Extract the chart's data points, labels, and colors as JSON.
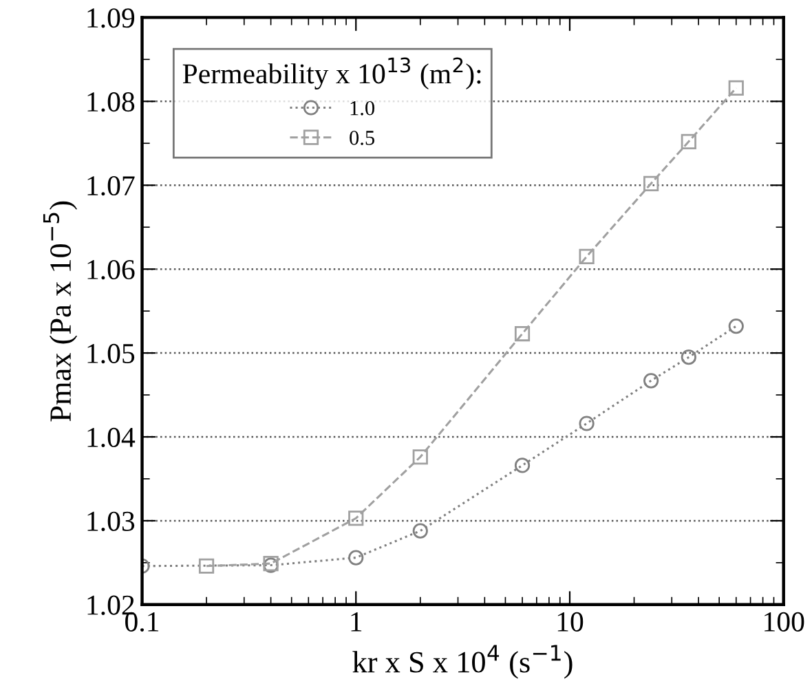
{
  "chart_data": {
    "type": "line",
    "xlabel": "kr x S x 10$^{4}$ (s$^{−1}$)",
    "ylabel": "Pmax (Pa x 10$^{−5}$)",
    "legend_title": "Permeability x 10$^{13}$ (m$^{2}$):",
    "log": "x",
    "xlim": [
      0.1,
      100
    ],
    "xticks": [
      0.1,
      1,
      10,
      100
    ],
    "ylim": [
      1.02,
      1.09
    ],
    "yticks": [
      1.02,
      1.03,
      1.04,
      1.05,
      1.06,
      1.07,
      1.08,
      1.09
    ],
    "grid": "y",
    "legend": "top left",
    "series": [
      {
        "name": "1.0",
        "color": "#808080",
        "marker": "circle",
        "line_style": "dotted",
        "x": [
          0.1,
          0.4,
          1,
          2,
          6,
          12,
          24,
          36,
          60
        ],
        "values": [
          1.0246,
          1.0247,
          1.0256,
          1.0288,
          1.0366,
          1.0416,
          1.0467,
          1.0495,
          1.0532
        ]
      },
      {
        "name": "0.5",
        "color": "#a0a0a0",
        "marker": "square",
        "line_style": "dashed",
        "x": [
          0.2,
          0.4,
          1,
          2,
          6,
          12,
          24,
          36,
          60
        ],
        "values": [
          1.0246,
          1.0249,
          1.0303,
          1.0376,
          1.0523,
          1.0615,
          1.0702,
          1.0752,
          1.0816
        ]
      }
    ]
  }
}
